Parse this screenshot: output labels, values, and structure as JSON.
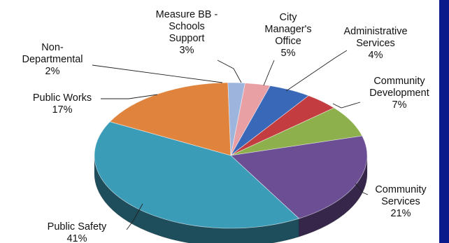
{
  "chart_data": {
    "type": "pie",
    "title": "",
    "style": "3d",
    "slices": [
      {
        "lines": [
          "Measure BB -",
          "Schools",
          "Support"
        ],
        "pct_text": "3%",
        "value": 3,
        "color": "#e8a0a4"
      },
      {
        "lines": [
          "City",
          "Manager's",
          "Office"
        ],
        "pct_text": "5%",
        "value": 5,
        "color": "#3a68b8"
      },
      {
        "lines": [
          "Administrative",
          "Services"
        ],
        "pct_text": "4%",
        "value": 4,
        "color": "#c23c40"
      },
      {
        "lines": [
          "Community",
          "Development"
        ],
        "pct_text": "7%",
        "value": 7,
        "color": "#8db04c"
      },
      {
        "lines": [
          "Community",
          "Services"
        ],
        "pct_text": "21%",
        "value": 21,
        "color": "#6b4e94"
      },
      {
        "lines": [
          "Public Safety"
        ],
        "pct_text": "41%",
        "value": 41,
        "color": "#3b9cb8"
      },
      {
        "lines": [
          "Public Works"
        ],
        "pct_text": "17%",
        "value": 17,
        "color": "#e0833c"
      },
      {
        "lines": [
          "Non-",
          "Departmental"
        ],
        "pct_text": "2%",
        "value": 2,
        "color": "#9db4dc"
      }
    ]
  }
}
